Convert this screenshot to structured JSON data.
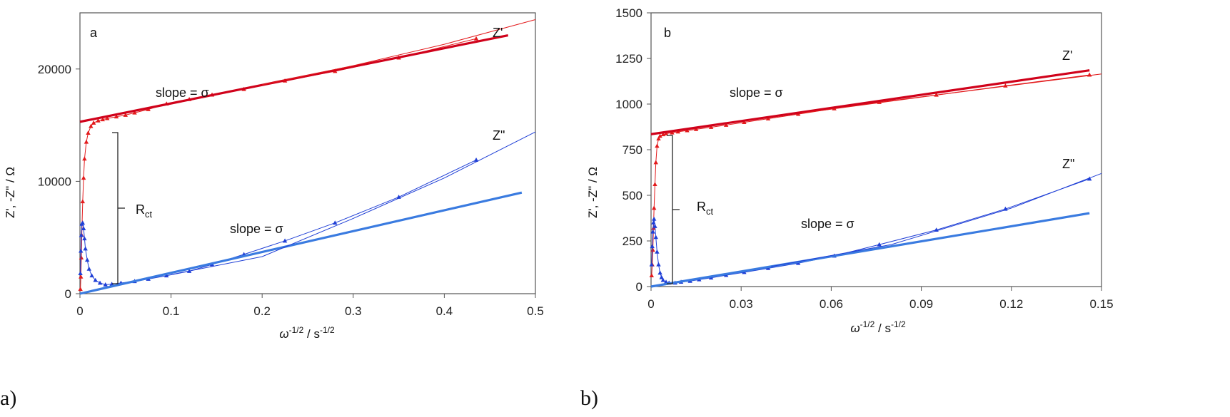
{
  "chart_data": [
    {
      "type": "scatter",
      "panel_letter": "a",
      "caption": "a)",
      "xlabel": "ω -1/2 / s -1/2",
      "ylabel": "Z', -Z\" / Ω",
      "xlim": [
        0,
        0.5
      ],
      "ylim": [
        0,
        25000
      ],
      "xticks": [
        "0",
        "0.1",
        "0.2",
        "0.3",
        "0.4",
        "0.5"
      ],
      "yticks": [
        "0",
        "10000",
        "20000"
      ],
      "grid": false,
      "annotations": {
        "zp_label": "Z'",
        "zpp_label": "Z\"",
        "slope_label": "slope = σ",
        "rct_label": "Rct"
      },
      "colors": {
        "zp": "#e31a1c",
        "zp_fit": "#d0021b",
        "zpp": "#1f3fd6",
        "zpp_fit": "#3a7be0"
      },
      "series": [
        {
          "name": "Z'",
          "kind": "points",
          "color_key": "zp",
          "x": [
            0.0005,
            0.001,
            0.0015,
            0.002,
            0.003,
            0.004,
            0.005,
            0.007,
            0.009,
            0.012,
            0.015,
            0.02,
            0.025,
            0.03,
            0.04,
            0.05,
            0.06,
            0.075,
            0.095,
            0.12,
            0.145,
            0.18,
            0.225,
            0.28,
            0.35,
            0.435
          ],
          "y": [
            400,
            1500,
            3200,
            5200,
            8200,
            10300,
            12000,
            13500,
            14300,
            14900,
            15200,
            15400,
            15500,
            15600,
            15750,
            15900,
            16100,
            16400,
            16900,
            17300,
            17700,
            18200,
            18950,
            19800,
            21000,
            22700
          ]
        },
        {
          "name": "Z' fit",
          "kind": "line",
          "color_key": "zp_fit",
          "width": 3.2,
          "x": [
            0,
            0.47
          ],
          "y": [
            15300,
            23000
          ]
        },
        {
          "name": "Z' thin",
          "kind": "line",
          "color_key": "zp",
          "width": 1,
          "x": [
            0.2,
            0.3,
            0.4,
            0.5
          ],
          "y": [
            18600,
            20300,
            22200,
            24400
          ]
        },
        {
          "name": "Z\"",
          "kind": "points",
          "color_key": "zpp",
          "x": [
            0.0005,
            0.001,
            0.0015,
            0.002,
            0.003,
            0.004,
            0.005,
            0.006,
            0.008,
            0.01,
            0.013,
            0.017,
            0.022,
            0.028,
            0.035,
            0.045,
            0.06,
            0.075,
            0.095,
            0.12,
            0.145,
            0.18,
            0.225,
            0.28,
            0.35,
            0.435
          ],
          "y": [
            1800,
            3800,
            5200,
            6200,
            6300,
            5800,
            4900,
            4000,
            3000,
            2200,
            1600,
            1200,
            950,
            800,
            850,
            950,
            1100,
            1300,
            1600,
            2000,
            2600,
            3500,
            4700,
            6300,
            8600,
            11900
          ]
        },
        {
          "name": "Z\" fit",
          "kind": "line",
          "color_key": "zpp_fit",
          "width": 3.2,
          "x": [
            0,
            0.485
          ],
          "y": [
            0,
            9000
          ]
        },
        {
          "name": "Z\" thin",
          "kind": "line",
          "color_key": "zpp",
          "width": 1,
          "x": [
            0.1,
            0.2,
            0.3,
            0.4,
            0.5
          ],
          "y": [
            1700,
            3300,
            6700,
            10300,
            14400
          ]
        }
      ]
    },
    {
      "type": "scatter",
      "panel_letter": "b",
      "caption": "b)",
      "xlabel": "ω -1/2 / s -1/2",
      "ylabel": "Z', -Z\" / Ω",
      "xlim": [
        0,
        0.15
      ],
      "ylim": [
        0,
        1500
      ],
      "xticks": [
        "0",
        "0.03",
        "0.06",
        "0.09",
        "0.12",
        "0.15"
      ],
      "yticks": [
        "0",
        "250",
        "500",
        "750",
        "1000",
        "1250",
        "1500"
      ],
      "grid": false,
      "annotations": {
        "zp_label": "Z'",
        "zpp_label": "Z\"",
        "slope_label": "slope = σ",
        "rct_label": "Rct"
      },
      "colors": {
        "zp": "#e31a1c",
        "zp_fit": "#d0021b",
        "zpp": "#1f3fd6",
        "zpp_fit": "#3a7be0"
      },
      "series": [
        {
          "name": "Z'",
          "kind": "points",
          "color_key": "zp",
          "x": [
            0.0002,
            0.0004,
            0.0006,
            0.0008,
            0.001,
            0.0013,
            0.0016,
            0.002,
            0.0025,
            0.003,
            0.004,
            0.005,
            0.007,
            0.009,
            0.012,
            0.015,
            0.02,
            0.025,
            0.031,
            0.039,
            0.049,
            0.061,
            0.076,
            0.095,
            0.118,
            0.146
          ],
          "y": [
            60,
            120,
            200,
            320,
            430,
            560,
            680,
            770,
            810,
            825,
            833,
            838,
            843,
            848,
            855,
            862,
            873,
            885,
            900,
            920,
            945,
            975,
            1010,
            1050,
            1100,
            1160
          ]
        },
        {
          "name": "Z' fit",
          "kind": "line",
          "color_key": "zp_fit",
          "width": 3.2,
          "x": [
            0,
            0.146
          ],
          "y": [
            835,
            1185
          ]
        },
        {
          "name": "Z' thin",
          "kind": "line",
          "color_key": "zp",
          "width": 1,
          "x": [
            0.05,
            0.1,
            0.15
          ],
          "y": [
            950,
            1060,
            1165
          ]
        },
        {
          "name": "Z\"",
          "kind": "points",
          "color_key": "zpp",
          "x": [
            0.0002,
            0.0004,
            0.0006,
            0.0008,
            0.001,
            0.0013,
            0.0016,
            0.002,
            0.0025,
            0.003,
            0.0035,
            0.004,
            0.005,
            0.006,
            0.008,
            0.01,
            0.013,
            0.016,
            0.02,
            0.025,
            0.031,
            0.039,
            0.049,
            0.061,
            0.076,
            0.095,
            0.118,
            0.146
          ],
          "y": [
            120,
            220,
            300,
            350,
            370,
            330,
            270,
            190,
            120,
            75,
            50,
            35,
            25,
            20,
            20,
            25,
            30,
            38,
            48,
            62,
            78,
            100,
            128,
            168,
            230,
            310,
            425,
            590
          ]
        },
        {
          "name": "Z\" fit",
          "kind": "line",
          "color_key": "zpp_fit",
          "width": 3.2,
          "x": [
            0,
            0.146
          ],
          "y": [
            0,
            402
          ]
        },
        {
          "name": "Z\" thin",
          "kind": "line",
          "color_key": "zpp",
          "width": 1,
          "x": [
            0.04,
            0.08,
            0.12,
            0.15
          ],
          "y": [
            110,
            230,
            430,
            620
          ]
        }
      ]
    }
  ]
}
